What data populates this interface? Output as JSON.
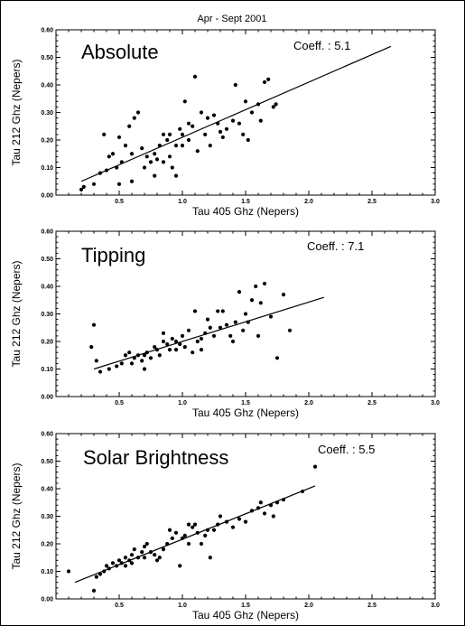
{
  "figure_title": "Apr - Sept 2001",
  "chart_data": [
    {
      "type": "scatter",
      "panel_label": "Absolute",
      "annotation": "Coeff. : 5.1",
      "xlabel": "Tau 405 Ghz (Nepers)",
      "ylabel": "Tau 212 Ghz (Nepers)",
      "xlim": [
        0,
        3
      ],
      "ylim": [
        0,
        0.6
      ],
      "xticks": [
        "0.5",
        "1.0",
        "1.5",
        "2.0",
        "2.5",
        "3.0"
      ],
      "yticks": [
        "0.00",
        "0.10",
        "0.20",
        "0.30",
        "0.40",
        "0.50",
        "0.60"
      ],
      "fit_line": [
        [
          0.2,
          0.05
        ],
        [
          2.65,
          0.54
        ]
      ],
      "points": [
        [
          0.2,
          0.02
        ],
        [
          0.22,
          0.03
        ],
        [
          0.3,
          0.04
        ],
        [
          0.35,
          0.08
        ],
        [
          0.38,
          0.22
        ],
        [
          0.4,
          0.09
        ],
        [
          0.42,
          0.14
        ],
        [
          0.45,
          0.15
        ],
        [
          0.48,
          0.1
        ],
        [
          0.5,
          0.04
        ],
        [
          0.5,
          0.21
        ],
        [
          0.52,
          0.12
        ],
        [
          0.55,
          0.18
        ],
        [
          0.58,
          0.25
        ],
        [
          0.6,
          0.15
        ],
        [
          0.6,
          0.05
        ],
        [
          0.62,
          0.28
        ],
        [
          0.65,
          0.3
        ],
        [
          0.68,
          0.17
        ],
        [
          0.7,
          0.1
        ],
        [
          0.72,
          0.14
        ],
        [
          0.75,
          0.12
        ],
        [
          0.78,
          0.15
        ],
        [
          0.8,
          0.13
        ],
        [
          0.82,
          0.18
        ],
        [
          0.85,
          0.12
        ],
        [
          0.85,
          0.22
        ],
        [
          0.88,
          0.2
        ],
        [
          0.9,
          0.14
        ],
        [
          0.92,
          0.1
        ],
        [
          0.95,
          0.18
        ],
        [
          0.98,
          0.24
        ],
        [
          1.0,
          0.18
        ],
        [
          1.0,
          0.22
        ],
        [
          1.02,
          0.34
        ],
        [
          1.05,
          0.2
        ],
        [
          1.05,
          0.26
        ],
        [
          1.08,
          0.25
        ],
        [
          1.1,
          0.43
        ],
        [
          1.12,
          0.16
        ],
        [
          1.15,
          0.3
        ],
        [
          1.18,
          0.22
        ],
        [
          1.2,
          0.28
        ],
        [
          1.22,
          0.18
        ],
        [
          1.25,
          0.29
        ],
        [
          1.28,
          0.26
        ],
        [
          1.3,
          0.23
        ],
        [
          1.32,
          0.21
        ],
        [
          1.35,
          0.24
        ],
        [
          1.4,
          0.27
        ],
        [
          1.42,
          0.4
        ],
        [
          1.45,
          0.26
        ],
        [
          1.48,
          0.22
        ],
        [
          1.5,
          0.34
        ],
        [
          1.52,
          0.2
        ],
        [
          1.55,
          0.3
        ],
        [
          1.6,
          0.33
        ],
        [
          1.62,
          0.27
        ],
        [
          1.65,
          0.41
        ],
        [
          1.68,
          0.42
        ],
        [
          1.72,
          0.32
        ],
        [
          1.74,
          0.33
        ],
        [
          0.95,
          0.07
        ],
        [
          0.9,
          0.22
        ],
        [
          0.78,
          0.07
        ]
      ]
    },
    {
      "type": "scatter",
      "panel_label": "Tipping",
      "annotation": "Coeff. : 7.1",
      "xlabel": "Tau 405 Ghz (Nepers)",
      "ylabel": "Tau 212 Ghz (Nepers)",
      "xlim": [
        0,
        3
      ],
      "ylim": [
        0,
        0.6
      ],
      "xticks": [
        "0.5",
        "1.0",
        "1.5",
        "2.0",
        "2.5",
        "3.0"
      ],
      "yticks": [
        "0.00",
        "0.10",
        "0.20",
        "0.30",
        "0.40",
        "0.50",
        "0.60"
      ],
      "fit_line": [
        [
          0.3,
          0.1
        ],
        [
          2.12,
          0.36
        ]
      ],
      "points": [
        [
          0.28,
          0.18
        ],
        [
          0.3,
          0.26
        ],
        [
          0.32,
          0.13
        ],
        [
          0.35,
          0.09
        ],
        [
          0.42,
          0.1
        ],
        [
          0.48,
          0.11
        ],
        [
          0.52,
          0.12
        ],
        [
          0.55,
          0.15
        ],
        [
          0.58,
          0.16
        ],
        [
          0.6,
          0.12
        ],
        [
          0.62,
          0.14
        ],
        [
          0.65,
          0.15
        ],
        [
          0.68,
          0.13
        ],
        [
          0.7,
          0.15
        ],
        [
          0.72,
          0.16
        ],
        [
          0.75,
          0.14
        ],
        [
          0.78,
          0.18
        ],
        [
          0.8,
          0.17
        ],
        [
          0.82,
          0.15
        ],
        [
          0.85,
          0.2
        ],
        [
          0.88,
          0.19
        ],
        [
          0.9,
          0.17
        ],
        [
          0.92,
          0.21
        ],
        [
          0.95,
          0.2
        ],
        [
          0.98,
          0.19
        ],
        [
          1.0,
          0.22
        ],
        [
          1.02,
          0.18
        ],
        [
          1.05,
          0.24
        ],
        [
          1.08,
          0.16
        ],
        [
          1.1,
          0.31
        ],
        [
          1.12,
          0.2
        ],
        [
          1.15,
          0.21
        ],
        [
          1.18,
          0.23
        ],
        [
          1.2,
          0.28
        ],
        [
          1.22,
          0.25
        ],
        [
          1.25,
          0.22
        ],
        [
          1.28,
          0.31
        ],
        [
          1.3,
          0.25
        ],
        [
          1.32,
          0.31
        ],
        [
          1.35,
          0.26
        ],
        [
          1.38,
          0.22
        ],
        [
          1.4,
          0.2
        ],
        [
          1.42,
          0.27
        ],
        [
          1.45,
          0.38
        ],
        [
          1.48,
          0.24
        ],
        [
          1.5,
          0.3
        ],
        [
          1.52,
          0.27
        ],
        [
          1.55,
          0.35
        ],
        [
          1.58,
          0.4
        ],
        [
          1.6,
          0.22
        ],
        [
          1.62,
          0.34
        ],
        [
          1.65,
          0.41
        ],
        [
          1.7,
          0.29
        ],
        [
          1.75,
          0.14
        ],
        [
          1.8,
          0.37
        ],
        [
          1.85,
          0.24
        ],
        [
          0.85,
          0.23
        ],
        [
          0.95,
          0.17
        ],
        [
          1.15,
          0.17
        ],
        [
          0.7,
          0.1
        ]
      ]
    },
    {
      "type": "scatter",
      "panel_label": "Solar Brightness",
      "annotation": "Coeff. : 5.5",
      "xlabel": "Tau 405 Ghz (Nepers)",
      "ylabel": "Tau 212 Ghz (Nepers)",
      "xlim": [
        0,
        3
      ],
      "ylim": [
        0,
        0.6
      ],
      "xticks": [
        "0.5",
        "1.0",
        "1.5",
        "2.0",
        "2.5",
        "3.0"
      ],
      "yticks": [
        "0.00",
        "0.10",
        "0.20",
        "0.30",
        "0.40",
        "0.50",
        "0.60"
      ],
      "fit_line": [
        [
          0.15,
          0.06
        ],
        [
          2.05,
          0.41
        ]
      ],
      "points": [
        [
          0.1,
          0.1
        ],
        [
          0.3,
          0.03
        ],
        [
          0.32,
          0.08
        ],
        [
          0.35,
          0.09
        ],
        [
          0.38,
          0.1
        ],
        [
          0.4,
          0.12
        ],
        [
          0.42,
          0.11
        ],
        [
          0.45,
          0.13
        ],
        [
          0.48,
          0.12
        ],
        [
          0.5,
          0.14
        ],
        [
          0.52,
          0.13
        ],
        [
          0.55,
          0.15
        ],
        [
          0.58,
          0.14
        ],
        [
          0.6,
          0.16
        ],
        [
          0.62,
          0.18
        ],
        [
          0.65,
          0.15
        ],
        [
          0.68,
          0.17
        ],
        [
          0.7,
          0.19
        ],
        [
          0.72,
          0.2
        ],
        [
          0.75,
          0.17
        ],
        [
          0.78,
          0.16
        ],
        [
          0.8,
          0.14
        ],
        [
          0.82,
          0.15
        ],
        [
          0.85,
          0.18
        ],
        [
          0.88,
          0.2
        ],
        [
          0.9,
          0.25
        ],
        [
          0.92,
          0.22
        ],
        [
          0.95,
          0.24
        ],
        [
          0.98,
          0.12
        ],
        [
          1.0,
          0.22
        ],
        [
          1.02,
          0.23
        ],
        [
          1.05,
          0.2
        ],
        [
          1.08,
          0.26
        ],
        [
          1.1,
          0.27
        ],
        [
          1.12,
          0.24
        ],
        [
          1.15,
          0.2
        ],
        [
          1.18,
          0.23
        ],
        [
          1.2,
          0.25
        ],
        [
          1.22,
          0.15
        ],
        [
          1.25,
          0.25
        ],
        [
          1.28,
          0.27
        ],
        [
          1.3,
          0.3
        ],
        [
          1.35,
          0.28
        ],
        [
          1.4,
          0.26
        ],
        [
          1.45,
          0.29
        ],
        [
          1.5,
          0.28
        ],
        [
          1.55,
          0.32
        ],
        [
          1.6,
          0.33
        ],
        [
          1.62,
          0.35
        ],
        [
          1.65,
          0.31
        ],
        [
          1.7,
          0.34
        ],
        [
          1.72,
          0.3
        ],
        [
          1.75,
          0.35
        ],
        [
          1.8,
          0.36
        ],
        [
          1.95,
          0.39
        ],
        [
          2.05,
          0.48
        ],
        [
          0.55,
          0.12
        ],
        [
          0.6,
          0.13
        ],
        [
          0.7,
          0.15
        ],
        [
          1.05,
          0.27
        ]
      ]
    }
  ]
}
